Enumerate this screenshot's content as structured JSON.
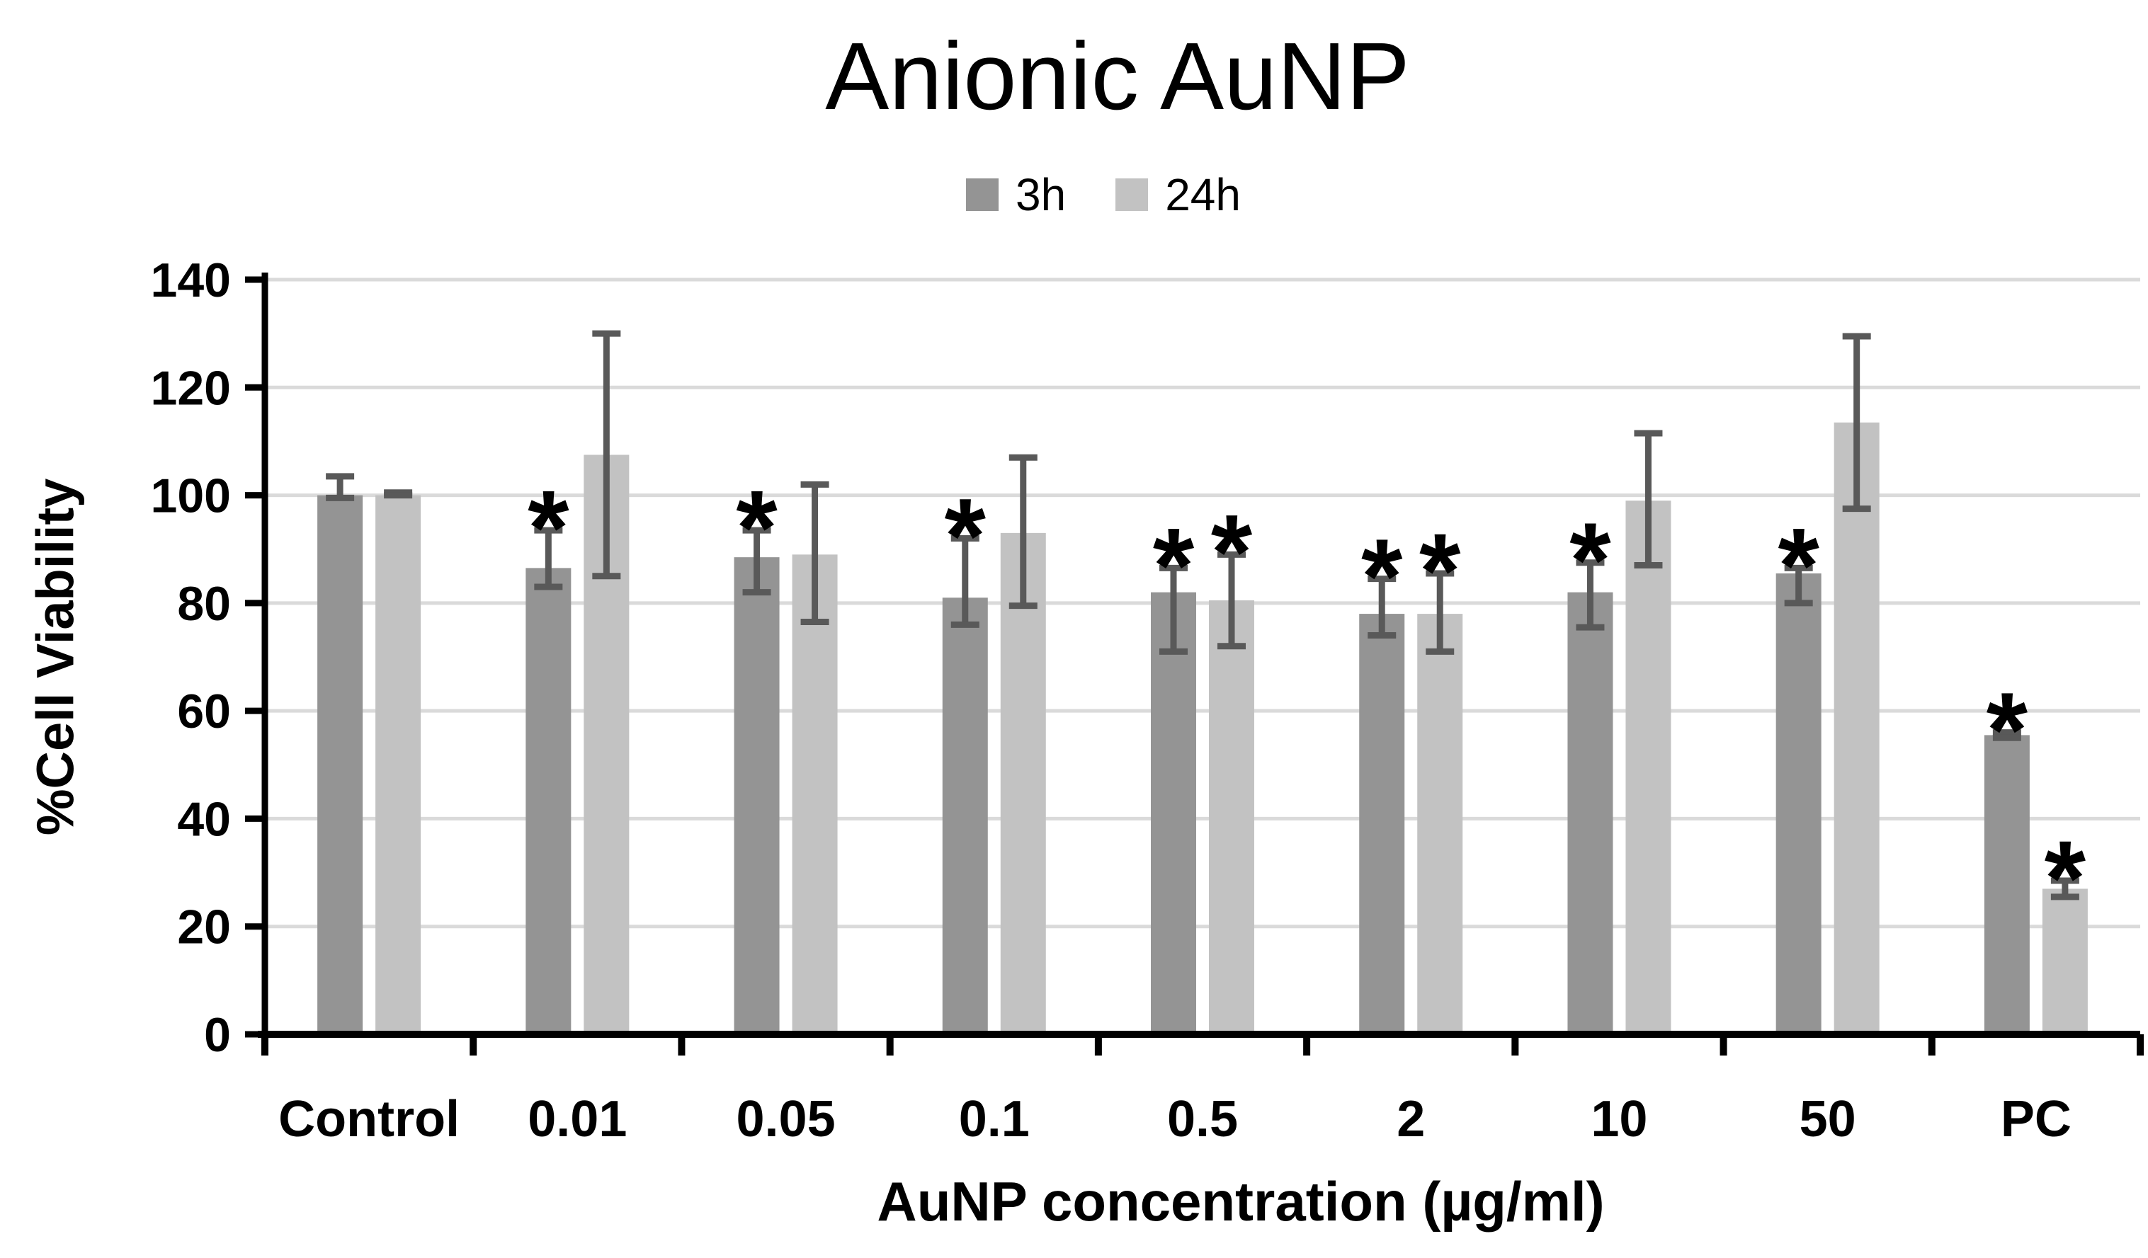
{
  "chart_data": {
    "type": "bar",
    "title": "Anionic AuNP",
    "xlabel": "AuNP concentration (µg/ml)",
    "ylabel": "%Cell Viability",
    "ylim": [
      0,
      140
    ],
    "yticks": [
      0,
      20,
      40,
      60,
      80,
      100,
      120,
      140
    ],
    "grid": true,
    "legend_position": "top-center",
    "categories": [
      "Control",
      "0.01",
      "0.05",
      "0.1",
      "0.5",
      "2",
      "10",
      "50",
      "PC"
    ],
    "series": [
      {
        "name": "3h",
        "color": "#949494",
        "values": [
          100,
          86.5,
          88.5,
          81,
          82,
          78,
          82,
          85.5,
          55.5
        ],
        "error_up": [
          3.5,
          7,
          5,
          11,
          4.5,
          6.5,
          5.5,
          1,
          0.5
        ],
        "error_down": [
          0.5,
          3.5,
          6.5,
          5,
          11,
          4,
          6.5,
          5.5,
          0.5
        ],
        "significant": [
          false,
          true,
          true,
          true,
          true,
          true,
          true,
          true,
          true
        ]
      },
      {
        "name": "24h",
        "color": "#C2C2C2",
        "values": [
          100,
          107.5,
          89,
          93,
          80.5,
          78,
          99,
          113.5,
          27
        ],
        "error_up": [
          0.5,
          22.5,
          13,
          14,
          8.5,
          7.5,
          12.5,
          16,
          1.5
        ],
        "error_down": [
          0,
          22.5,
          12.5,
          13.5,
          8.5,
          7,
          12,
          16,
          1.5
        ],
        "significant": [
          false,
          false,
          false,
          false,
          true,
          true,
          false,
          false,
          true
        ]
      }
    ],
    "significance_marker": "*",
    "marker_color": "#404040",
    "error_bar_color": "#595959",
    "gridline_color": "#DADADA",
    "axis_color": "#000000"
  }
}
